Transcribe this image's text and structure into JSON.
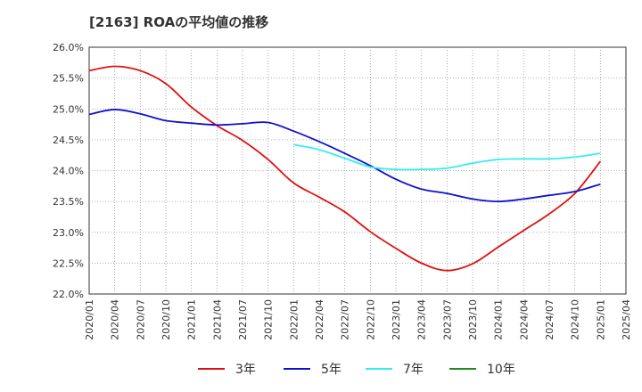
{
  "chart_data": {
    "type": "line",
    "title": "[2163]  ROAの平均値の推移",
    "xlabel": "",
    "ylabel": "",
    "ylim": [
      22.0,
      26.0
    ],
    "y_ticks": [
      "26.0%",
      "25.5%",
      "25.0%",
      "24.5%",
      "24.0%",
      "23.5%",
      "23.0%",
      "22.5%",
      "22.0%"
    ],
    "x_ticks": [
      "2020/01",
      "2020/04",
      "2020/07",
      "2020/10",
      "2021/01",
      "2021/04",
      "2021/07",
      "2021/10",
      "2022/01",
      "2022/04",
      "2022/07",
      "2022/10",
      "2023/01",
      "2023/04",
      "2023/07",
      "2023/10",
      "2024/01",
      "2024/04",
      "2024/07",
      "2024/10",
      "2025/01",
      "2025/04"
    ],
    "grid": true,
    "legend_position": "bottom",
    "series": [
      {
        "name": "3年",
        "color": "#dd1111",
        "x": [
          "2020/01",
          "2020/04",
          "2020/07",
          "2020/10",
          "2021/01",
          "2021/04",
          "2021/07",
          "2021/10",
          "2022/01",
          "2022/04",
          "2022/07",
          "2022/10",
          "2023/01",
          "2023/04",
          "2023/07",
          "2023/10",
          "2024/01",
          "2024/04",
          "2024/07",
          "2024/10",
          "2025/01"
        ],
        "values": [
          25.62,
          25.69,
          25.62,
          25.41,
          25.03,
          24.73,
          24.49,
          24.18,
          23.8,
          23.57,
          23.33,
          23.01,
          22.74,
          22.5,
          22.38,
          22.49,
          22.76,
          23.03,
          23.3,
          23.63,
          24.15
        ]
      },
      {
        "name": "5年",
        "color": "#1111cc",
        "x": [
          "2020/01",
          "2020/04",
          "2020/07",
          "2020/10",
          "2021/01",
          "2021/04",
          "2021/07",
          "2021/10",
          "2022/01",
          "2022/04",
          "2022/07",
          "2022/10",
          "2023/01",
          "2023/04",
          "2023/07",
          "2023/10",
          "2024/01",
          "2024/04",
          "2024/07",
          "2024/10",
          "2025/01"
        ],
        "values": [
          24.91,
          24.99,
          24.92,
          24.81,
          24.77,
          24.74,
          24.76,
          24.78,
          24.64,
          24.47,
          24.28,
          24.08,
          23.86,
          23.7,
          23.63,
          23.54,
          23.5,
          23.54,
          23.6,
          23.66,
          23.78
        ]
      },
      {
        "name": "7年",
        "color": "#33eeee",
        "x": [
          "2022/01",
          "2022/04",
          "2022/07",
          "2022/10",
          "2023/01",
          "2023/04",
          "2023/07",
          "2023/10",
          "2024/01",
          "2024/04",
          "2024/07",
          "2024/10",
          "2025/01"
        ],
        "values": [
          24.42,
          24.34,
          24.2,
          24.06,
          24.02,
          24.02,
          24.04,
          24.12,
          24.18,
          24.19,
          24.19,
          24.22,
          24.28
        ]
      },
      {
        "name": "10年",
        "color": "#228822",
        "x": [],
        "values": []
      }
    ]
  }
}
